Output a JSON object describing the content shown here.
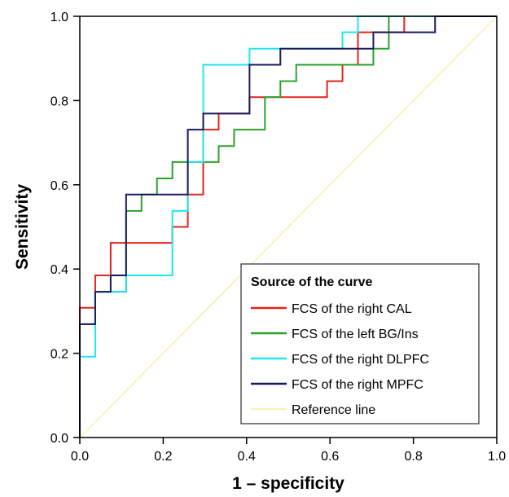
{
  "chart_data": {
    "type": "line",
    "xlabel": "1 – specificity",
    "ylabel": "Sensitivity",
    "xlim": [
      0,
      1
    ],
    "ylim": [
      0,
      1
    ],
    "x_ticks": [
      "0.0",
      "0.2",
      "0.4",
      "0.6",
      "0.8",
      "1.0"
    ],
    "y_ticks": [
      "0.0",
      "0.2",
      "0.4",
      "0.6",
      "0.8",
      "1.0"
    ],
    "grid": false,
    "legend": {
      "title": "Source of the curve",
      "placement": "bottom-right"
    },
    "series": [
      {
        "name": "FCS of the right CAL",
        "color": "#e3241b",
        "x": [
          0,
          0,
          0.037,
          0.037,
          0.074,
          0.074,
          0.222,
          0.222,
          0.259,
          0.259,
          0.296,
          0.296,
          0.333,
          0.333,
          0.407,
          0.407,
          0.481,
          0.481,
          0.593,
          0.593,
          0.63,
          0.63,
          0.667,
          0.667,
          0.778,
          0.778,
          1.0
        ],
        "y": [
          0,
          0.308,
          0.308,
          0.385,
          0.385,
          0.462,
          0.462,
          0.5,
          0.5,
          0.577,
          0.577,
          0.731,
          0.731,
          0.769,
          0.769,
          0.808,
          0.808,
          0.808,
          0.808,
          0.846,
          0.846,
          0.885,
          0.885,
          0.962,
          0.962,
          1.0,
          1.0
        ]
      },
      {
        "name": "FCS of the left BG/Ins",
        "color": "#2ca02c",
        "x": [
          0,
          0,
          0.037,
          0.037,
          0.111,
          0.111,
          0.148,
          0.148,
          0.185,
          0.185,
          0.222,
          0.222,
          0.296,
          0.296,
          0.333,
          0.333,
          0.37,
          0.37,
          0.444,
          0.444,
          0.481,
          0.481,
          0.519,
          0.519,
          0.704,
          0.704,
          0.741,
          0.741,
          1.0
        ],
        "y": [
          0,
          0.269,
          0.269,
          0.346,
          0.346,
          0.538,
          0.538,
          0.577,
          0.577,
          0.615,
          0.615,
          0.654,
          0.654,
          0.654,
          0.654,
          0.692,
          0.692,
          0.731,
          0.731,
          0.808,
          0.808,
          0.846,
          0.846,
          0.885,
          0.885,
          0.923,
          0.923,
          1.0,
          1.0
        ]
      },
      {
        "name": "FCS of the right DLPFC",
        "color": "#1ee6f0",
        "x": [
          0,
          0,
          0.037,
          0.037,
          0.111,
          0.111,
          0.222,
          0.222,
          0.259,
          0.259,
          0.296,
          0.296,
          0.407,
          0.407,
          0.63,
          0.63,
          0.667,
          0.667,
          1.0
        ],
        "y": [
          0,
          0.192,
          0.192,
          0.346,
          0.346,
          0.385,
          0.385,
          0.538,
          0.538,
          0.654,
          0.654,
          0.885,
          0.885,
          0.923,
          0.923,
          0.962,
          0.962,
          1.0,
          1.0
        ]
      },
      {
        "name": "FCS of the right MPFC",
        "color": "#1a1a5e",
        "x": [
          0,
          0,
          0.037,
          0.037,
          0.074,
          0.074,
          0.111,
          0.111,
          0.259,
          0.259,
          0.296,
          0.296,
          0.407,
          0.407,
          0.481,
          0.481,
          0.704,
          0.704,
          0.852,
          0.852,
          1.0
        ],
        "y": [
          0,
          0.269,
          0.269,
          0.346,
          0.346,
          0.385,
          0.385,
          0.577,
          0.577,
          0.731,
          0.731,
          0.769,
          0.769,
          0.885,
          0.885,
          0.923,
          0.923,
          0.962,
          0.962,
          1.0,
          1.0
        ]
      },
      {
        "name": "Reference line",
        "color": "#f3ef9a",
        "x": [
          0,
          1
        ],
        "y": [
          0,
          1
        ]
      }
    ]
  }
}
